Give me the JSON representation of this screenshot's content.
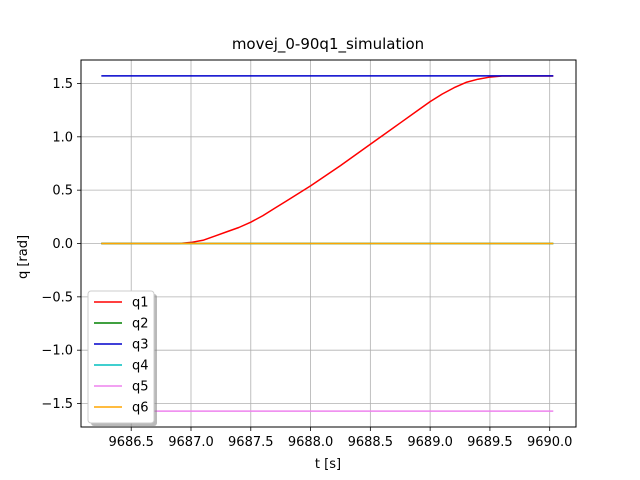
{
  "chart_data": {
    "type": "line",
    "title": "movej_0-90q1_simulation",
    "xlabel": "t [s]",
    "ylabel": "q [rad]",
    "xlim": [
      9686.08,
      9690.22
    ],
    "ylim": [
      -1.72,
      1.72
    ],
    "xticks": [
      9686.5,
      9687.0,
      9687.5,
      9688.0,
      9688.5,
      9689.0,
      9689.5,
      9690.0
    ],
    "xtick_labels": [
      "9686.5",
      "9687.0",
      "9687.5",
      "9688.0",
      "9688.5",
      "9689.0",
      "9689.5",
      "9690.0"
    ],
    "yticks": [
      -1.5,
      -1.0,
      -0.5,
      0.0,
      0.5,
      1.0,
      1.5
    ],
    "ytick_labels": [
      "−1.5",
      "−1.0",
      "−0.5",
      "0.0",
      "0.5",
      "1.0",
      "1.5"
    ],
    "grid": true,
    "legend_position": "lower-left",
    "series": [
      {
        "name": "q1",
        "color": "#ff0000",
        "x": [
          9686.25,
          9686.6,
          9686.9,
          9687.0,
          9687.1,
          9687.2,
          9687.3,
          9687.4,
          9687.5,
          9687.6,
          9687.7,
          9687.8,
          9687.9,
          9688.0,
          9688.25,
          9688.5,
          9688.75,
          9688.9,
          9689.0,
          9689.1,
          9689.2,
          9689.3,
          9689.4,
          9689.5,
          9689.6,
          9690.03
        ],
        "y": [
          0.0,
          0.0,
          0.0,
          0.01,
          0.03,
          0.07,
          0.11,
          0.15,
          0.2,
          0.26,
          0.33,
          0.4,
          0.47,
          0.54,
          0.73,
          0.93,
          1.13,
          1.25,
          1.33,
          1.4,
          1.46,
          1.51,
          1.54,
          1.56,
          1.57,
          1.57
        ]
      },
      {
        "name": "q2",
        "color": "#008000",
        "x": [
          9686.25,
          9690.03
        ],
        "y": [
          0.0,
          0.0
        ]
      },
      {
        "name": "q3",
        "color": "#0000cc",
        "x": [
          9686.25,
          9690.03
        ],
        "y": [
          1.5708,
          1.5708
        ]
      },
      {
        "name": "q4",
        "color": "#00bfbf",
        "x": [
          9686.25,
          9690.03
        ],
        "y": [
          0.0,
          0.0
        ]
      },
      {
        "name": "q5",
        "color": "#ee82ee",
        "x": [
          9686.25,
          9690.03
        ],
        "y": [
          -1.5708,
          -1.5708
        ]
      },
      {
        "name": "q6",
        "color": "#ffa500",
        "x": [
          9686.25,
          9690.03
        ],
        "y": [
          0.0,
          0.0
        ]
      }
    ]
  }
}
